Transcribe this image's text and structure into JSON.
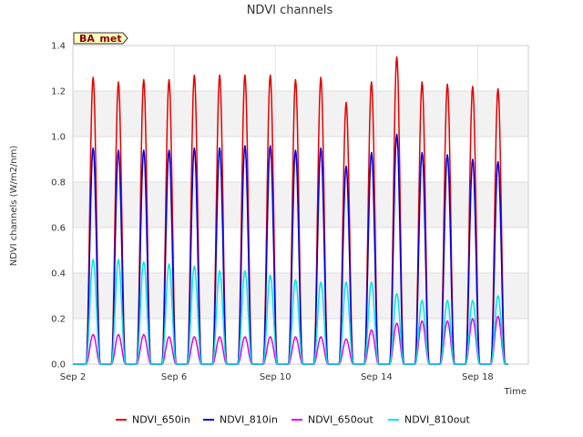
{
  "chart_data": {
    "type": "line",
    "title": "NDVI channels",
    "xlabel": "Time",
    "ylabel": "NDVI channels (W/m2/nm)",
    "ylim": [
      0.0,
      1.4
    ],
    "xlim_days": [
      2.0,
      20.0
    ],
    "yticks": [
      0.0,
      0.2,
      0.4,
      0.6,
      0.8,
      1.0,
      1.2,
      1.4
    ],
    "ytick_labels": [
      "0.0",
      "0.2",
      "0.4",
      "0.6",
      "0.8",
      "1.0",
      "1.2",
      "1.4"
    ],
    "xticks_days": [
      2,
      6,
      10,
      14,
      18
    ],
    "xtick_labels": [
      "Sep 2",
      "Sep 6",
      "Sep 10",
      "Sep 14",
      "Sep 18"
    ],
    "grid": true,
    "badge": "BA_met",
    "day_centers": [
      2.8,
      3.8,
      4.8,
      5.8,
      6.8,
      7.8,
      8.8,
      9.8,
      10.8,
      11.8,
      12.8,
      13.8,
      14.8,
      15.8,
      16.8,
      17.8,
      18.8
    ],
    "peak_half_width_days": 0.28,
    "series": [
      {
        "name": "NDVI_650in",
        "color": "#e60000",
        "peaks": [
          1.26,
          1.24,
          1.25,
          1.25,
          1.27,
          1.27,
          1.27,
          1.27,
          1.25,
          1.26,
          1.15,
          1.24,
          1.35,
          1.24,
          1.23,
          1.22,
          1.21
        ]
      },
      {
        "name": "NDVI_810in",
        "color": "#0000e0",
        "peaks": [
          0.95,
          0.94,
          0.94,
          0.94,
          0.95,
          0.95,
          0.96,
          0.96,
          0.94,
          0.95,
          0.87,
          0.93,
          1.01,
          0.93,
          0.92,
          0.9,
          0.89
        ]
      },
      {
        "name": "NDVI_650out",
        "color": "#e600e6",
        "peaks": [
          0.13,
          0.13,
          0.13,
          0.12,
          0.12,
          0.12,
          0.12,
          0.12,
          0.12,
          0.12,
          0.11,
          0.15,
          0.18,
          0.19,
          0.19,
          0.2,
          0.21
        ]
      },
      {
        "name": "NDVI_810out",
        "color": "#00e6e6",
        "peaks": [
          0.46,
          0.46,
          0.45,
          0.44,
          0.43,
          0.41,
          0.41,
          0.39,
          0.37,
          0.36,
          0.36,
          0.36,
          0.31,
          0.28,
          0.28,
          0.28,
          0.3
        ]
      }
    ]
  }
}
